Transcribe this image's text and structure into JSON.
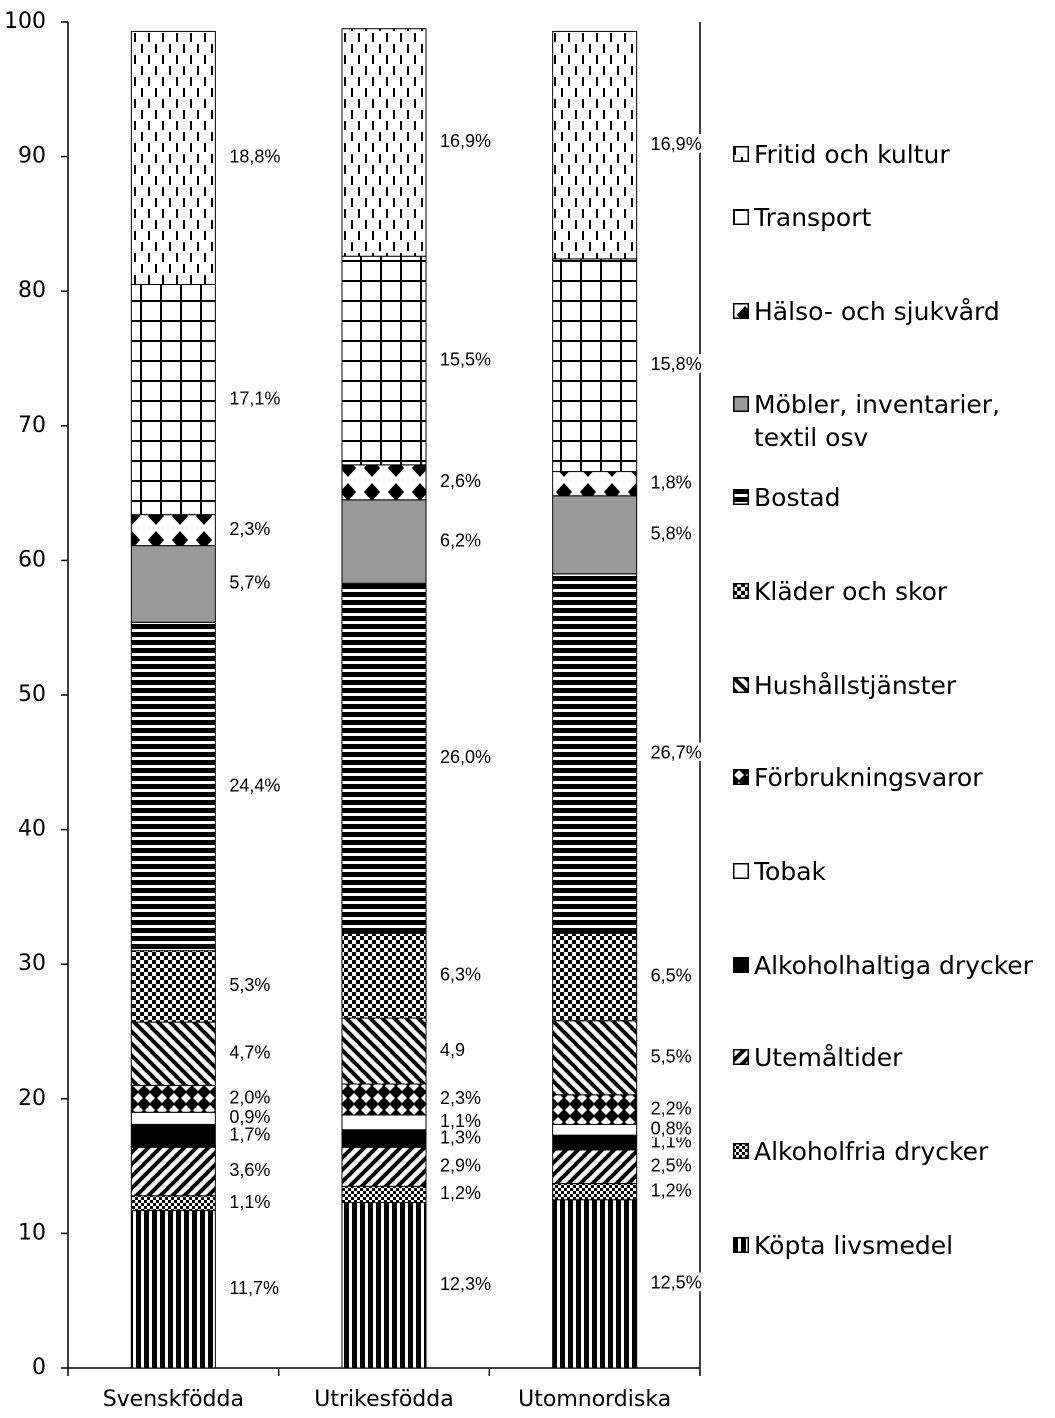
{
  "chart_data": {
    "type": "stacked_bar",
    "categories": [
      "Svenskfödda",
      "Utrikesfödda",
      "Utomnordiska"
    ],
    "ylim": [
      0,
      100
    ],
    "yticks": [
      0,
      10,
      20,
      30,
      40,
      50,
      60,
      70,
      80,
      90,
      100
    ],
    "series": [
      {
        "name": "Köpta livsmedel",
        "color": "#000000",
        "values": [
          11.7,
          12.3,
          12.5
        ],
        "value_labels": [
          "11,7%",
          "12,3%",
          "12,5%"
        ]
      },
      {
        "name": "Alkoholfria drycker",
        "color": "#000000",
        "values": [
          1.1,
          1.2,
          1.2
        ],
        "value_labels": [
          "1,1%",
          "1,2%",
          "1,2%"
        ]
      },
      {
        "name": "Utemåltider",
        "color": "#000000",
        "values": [
          3.6,
          2.9,
          2.5
        ],
        "value_labels": [
          "3,6%",
          "2,9%",
          "2,5%"
        ]
      },
      {
        "name": "Alkoholhaltiga drycker",
        "color": "#000000",
        "values": [
          1.7,
          1.3,
          1.1
        ],
        "value_labels": [
          "1,7%",
          "1,3%",
          "1,1%"
        ]
      },
      {
        "name": "Tobak",
        "color": "#ffffff",
        "values": [
          0.9,
          1.1,
          0.8
        ],
        "value_labels": [
          "0,9%",
          "1,1%",
          "0,8%"
        ]
      },
      {
        "name": "Förbrukningsvaror",
        "color": "#000000",
        "values": [
          2.0,
          2.3,
          2.2
        ],
        "value_labels": [
          "2,0%",
          "2,3%",
          "2,2%"
        ]
      },
      {
        "name": "Hushållstjänster",
        "color": "#000000",
        "values": [
          4.7,
          4.9,
          5.5
        ],
        "value_labels": [
          "4,7%",
          "4,9",
          "5,5%"
        ]
      },
      {
        "name": "Kläder och skor",
        "color": "#000000",
        "values": [
          5.3,
          6.3,
          6.5
        ],
        "value_labels": [
          "5,3%",
          "6,3%",
          "6,5%"
        ]
      },
      {
        "name": "Bostad",
        "color": "#000000",
        "values": [
          24.4,
          26.0,
          26.7
        ],
        "value_labels": [
          "24,4%",
          "26,0%",
          "26,7%"
        ]
      },
      {
        "name": "Möbler, inventarier, textil osv",
        "color": "#999999",
        "values": [
          5.7,
          6.2,
          5.8
        ],
        "value_labels": [
          "5,7%",
          "6,2%",
          "5,8%"
        ]
      },
      {
        "name": "Hälso- och sjukvård",
        "color": "#000000",
        "values": [
          2.3,
          2.6,
          1.8
        ],
        "value_labels": [
          "2,3%",
          "2,6%",
          "1,8%"
        ]
      },
      {
        "name": "Transport",
        "color": "#000000",
        "values": [
          17.1,
          15.5,
          15.8
        ],
        "value_labels": [
          "17,1%",
          "15,5%",
          "15,8%"
        ]
      },
      {
        "name": "Fritid och kultur",
        "color": "#000000",
        "values": [
          18.8,
          16.9,
          16.9
        ],
        "value_labels": [
          "18,8%",
          "16,9%",
          "16,9%"
        ]
      }
    ]
  }
}
